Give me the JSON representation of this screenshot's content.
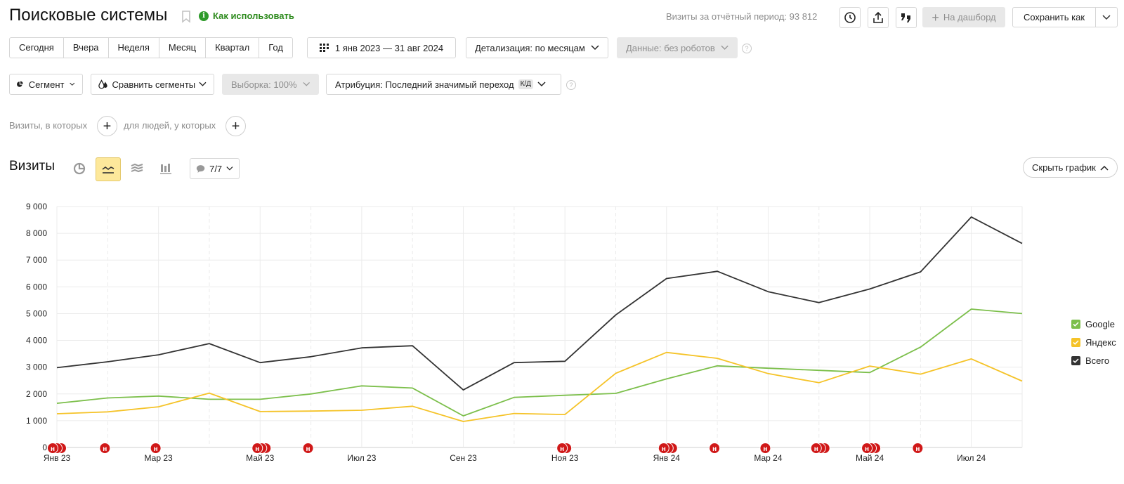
{
  "header": {
    "title": "Поисковые системы",
    "how_to_use": "Как использовать",
    "info_glyph": "i",
    "visits_summary": "Визиты за отчётный период: 93 812",
    "dashboard_label": "На дашборд",
    "save_as_label": "Сохранить как",
    "icons": [
      "clock-icon",
      "share-icon",
      "quote-icon"
    ]
  },
  "period": {
    "buttons": [
      "Сегодня",
      "Вчера",
      "Неделя",
      "Месяц",
      "Квартал",
      "Год"
    ],
    "date_range": "1 янв 2023 — 31 авг 2024",
    "detail": "Детализация: по месяцам",
    "data_filter": "Данные: без роботов",
    "help": "?"
  },
  "segments": {
    "segment": "Сегмент",
    "compare": "Сравнить сегменты",
    "sample": "Выборка: 100%",
    "attribution": "Атрибуция: Последний значимый переход",
    "attribution_badge": "К/Д",
    "help": "?"
  },
  "filters": {
    "visits_where": "Визиты, в которых",
    "people_where": "для людей, у которых",
    "plus": "+"
  },
  "chart_toolbar": {
    "title": "Визиты",
    "notes_count": "7/7",
    "hide_chart": "Скрыть график"
  },
  "colors": {
    "google": "#7cbf4b",
    "yandex": "#f5c328",
    "total": "#333333",
    "note_marker": "#d01818"
  },
  "chart_data": {
    "type": "line",
    "x": [
      "2023-01",
      "2023-02",
      "2023-03",
      "2023-04",
      "2023-05",
      "2023-06",
      "2023-07",
      "2023-08",
      "2023-09",
      "2023-10",
      "2023-11",
      "2023-12",
      "2024-01",
      "2024-02",
      "2024-03",
      "2024-04",
      "2024-05",
      "2024-06",
      "2024-07",
      "2024-08"
    ],
    "x_tick_labels": [
      "Янв 23",
      "Мар 23",
      "Май 23",
      "Июл 23",
      "Сен 23",
      "Ноя 23",
      "Янв 24",
      "Мар 24",
      "Май 24",
      "Июл 24"
    ],
    "y_tick_labels": [
      "0",
      "1 000",
      "2 000",
      "3 000",
      "4 000",
      "5 000",
      "6 000",
      "7 000",
      "8 000",
      "9 000"
    ],
    "ylim": [
      0,
      9000
    ],
    "grid": true,
    "legend_position": "right",
    "series": [
      {
        "name": "Google",
        "color": "#7cbf4b",
        "values": [
          1650,
          1850,
          1920,
          1800,
          1800,
          2000,
          2300,
          2220,
          1180,
          1870,
          1950,
          2020,
          2560,
          3050,
          2960,
          2880,
          2800,
          3750,
          5170,
          5000
        ]
      },
      {
        "name": "Яндекс",
        "color": "#f5c328",
        "values": [
          1260,
          1330,
          1520,
          2030,
          1340,
          1360,
          1390,
          1540,
          970,
          1270,
          1230,
          2770,
          3550,
          3330,
          2760,
          2420,
          3040,
          2740,
          3310,
          2480
        ]
      },
      {
        "name": "Всего",
        "color": "#333333",
        "values": [
          2980,
          3200,
          3460,
          3880,
          3170,
          3390,
          3720,
          3800,
          2150,
          3170,
          3220,
          4950,
          6310,
          6580,
          5820,
          5410,
          5920,
          6560,
          8610,
          7620
        ]
      }
    ],
    "note_markers": {
      "label": "н",
      "stacks": [
        3,
        1,
        1,
        3,
        1,
        2,
        3,
        1,
        1,
        3,
        3,
        1
      ]
    }
  }
}
